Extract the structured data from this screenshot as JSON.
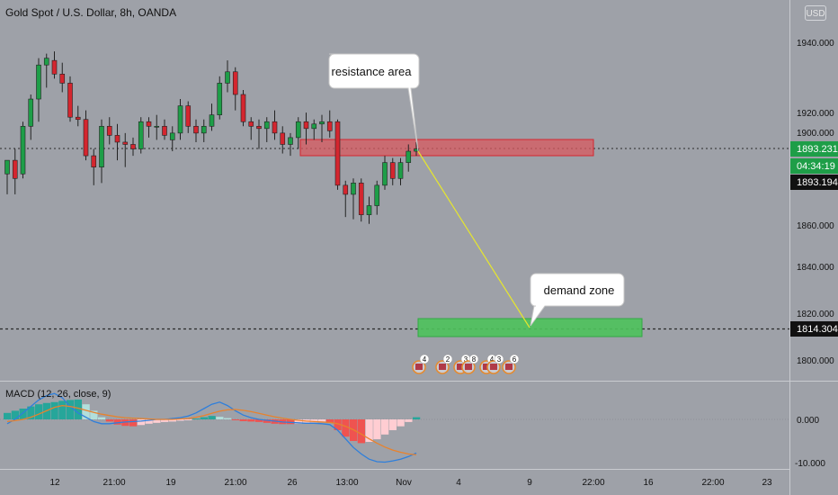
{
  "chart_title": "Gold Spot / U.S. Dollar, 8h, OANDA",
  "currency_button": "USD",
  "price_axis": {
    "ticks": [
      "1940.000",
      "1920.000",
      "1900.000",
      "1880.000",
      "1860.000",
      "1840.000",
      "1820.000",
      "1800.000"
    ]
  },
  "price_badges": {
    "last_price": "1893.231",
    "countdown": "04:34:19",
    "crosshair_price": "1893.194",
    "target_price": "1814.304"
  },
  "macd_axis": {
    "ticks": [
      "0.000",
      "-10.000"
    ]
  },
  "time_axis": {
    "ticks": [
      "12",
      "21:00",
      "19",
      "21:00",
      "26",
      "13:00",
      "Nov",
      "4",
      "9",
      "22:00",
      "16",
      "22:00",
      "23"
    ]
  },
  "annotations": {
    "resistance_label": "resistance area",
    "demand_label": "demand zone"
  },
  "event_markers": [
    "4",
    "2",
    "3",
    "8",
    "4",
    "3",
    "6"
  ],
  "macd": {
    "label": "MACD (12, 26, close, 9)"
  },
  "colors": {
    "background": "#9ea1a8",
    "up_candle": "#1e9e48",
    "down_candle": "#d4262f",
    "resistance_zone": "#d8595f",
    "demand_zone": "#4cc25b",
    "projection_line": "#e6e62e",
    "macd_line": "#2f7fdb",
    "signal_line": "#e8822c"
  },
  "chart_data": {
    "type": "candlestick",
    "title": "Gold Spot / U.S. Dollar, 8h, OANDA",
    "ylim": [
      1795,
      1950
    ],
    "candles": [
      {
        "o": 1882,
        "h": 1888,
        "l": 1873,
        "c": 1888
      },
      {
        "o": 1888,
        "h": 1893,
        "l": 1873,
        "c": 1880
      },
      {
        "o": 1882,
        "h": 1905,
        "l": 1880,
        "c": 1903
      },
      {
        "o": 1903,
        "h": 1917,
        "l": 1897,
        "c": 1915
      },
      {
        "o": 1915,
        "h": 1933,
        "l": 1905,
        "c": 1930
      },
      {
        "o": 1930,
        "h": 1935,
        "l": 1920,
        "c": 1933
      },
      {
        "o": 1932,
        "h": 1936,
        "l": 1924,
        "c": 1926
      },
      {
        "o": 1926,
        "h": 1931,
        "l": 1918,
        "c": 1922
      },
      {
        "o": 1922,
        "h": 1925,
        "l": 1905,
        "c": 1907
      },
      {
        "o": 1907,
        "h": 1912,
        "l": 1903,
        "c": 1906
      },
      {
        "o": 1906,
        "h": 1910,
        "l": 1888,
        "c": 1890
      },
      {
        "o": 1890,
        "h": 1893,
        "l": 1877,
        "c": 1885
      },
      {
        "o": 1885,
        "h": 1906,
        "l": 1878,
        "c": 1903
      },
      {
        "o": 1903,
        "h": 1907,
        "l": 1895,
        "c": 1899
      },
      {
        "o": 1899,
        "h": 1904,
        "l": 1888,
        "c": 1896
      },
      {
        "o": 1896,
        "h": 1900,
        "l": 1885,
        "c": 1895
      },
      {
        "o": 1895,
        "h": 1898,
        "l": 1890,
        "c": 1893
      },
      {
        "o": 1893,
        "h": 1907,
        "l": 1891,
        "c": 1905
      },
      {
        "o": 1905,
        "h": 1907,
        "l": 1898,
        "c": 1903
      },
      {
        "o": 1903,
        "h": 1908,
        "l": 1897,
        "c": 1903
      },
      {
        "o": 1903,
        "h": 1906,
        "l": 1897,
        "c": 1899
      },
      {
        "o": 1897,
        "h": 1903,
        "l": 1892,
        "c": 1900
      },
      {
        "o": 1900,
        "h": 1915,
        "l": 1897,
        "c": 1912
      },
      {
        "o": 1912,
        "h": 1914,
        "l": 1900,
        "c": 1903
      },
      {
        "o": 1903,
        "h": 1906,
        "l": 1896,
        "c": 1900
      },
      {
        "o": 1900,
        "h": 1906,
        "l": 1896,
        "c": 1903
      },
      {
        "o": 1903,
        "h": 1913,
        "l": 1901,
        "c": 1908
      },
      {
        "o": 1908,
        "h": 1925,
        "l": 1906,
        "c": 1922
      },
      {
        "o": 1922,
        "h": 1932,
        "l": 1918,
        "c": 1927
      },
      {
        "o": 1927,
        "h": 1929,
        "l": 1910,
        "c": 1917
      },
      {
        "o": 1917,
        "h": 1919,
        "l": 1903,
        "c": 1905
      },
      {
        "o": 1905,
        "h": 1907,
        "l": 1897,
        "c": 1903
      },
      {
        "o": 1903,
        "h": 1906,
        "l": 1893,
        "c": 1902
      },
      {
        "o": 1902,
        "h": 1907,
        "l": 1896,
        "c": 1905
      },
      {
        "o": 1905,
        "h": 1910,
        "l": 1897,
        "c": 1900
      },
      {
        "o": 1900,
        "h": 1903,
        "l": 1891,
        "c": 1895
      },
      {
        "o": 1895,
        "h": 1900,
        "l": 1890,
        "c": 1898
      },
      {
        "o": 1898,
        "h": 1907,
        "l": 1893,
        "c": 1905
      },
      {
        "o": 1905,
        "h": 1909,
        "l": 1895,
        "c": 1902
      },
      {
        "o": 1902,
        "h": 1906,
        "l": 1897,
        "c": 1904
      },
      {
        "o": 1904,
        "h": 1908,
        "l": 1896,
        "c": 1905
      },
      {
        "o": 1905,
        "h": 1910,
        "l": 1898,
        "c": 1901
      },
      {
        "o": 1905,
        "h": 1906,
        "l": 1875,
        "c": 1877
      },
      {
        "o": 1877,
        "h": 1879,
        "l": 1863,
        "c": 1873
      },
      {
        "o": 1873,
        "h": 1880,
        "l": 1862,
        "c": 1878
      },
      {
        "o": 1878,
        "h": 1880,
        "l": 1861,
        "c": 1864
      },
      {
        "o": 1864,
        "h": 1872,
        "l": 1860,
        "c": 1868
      },
      {
        "o": 1868,
        "h": 1879,
        "l": 1864,
        "c": 1877
      },
      {
        "o": 1877,
        "h": 1890,
        "l": 1875,
        "c": 1887
      },
      {
        "o": 1887,
        "h": 1889,
        "l": 1877,
        "c": 1880
      },
      {
        "o": 1880,
        "h": 1889,
        "l": 1877,
        "c": 1887
      },
      {
        "o": 1887,
        "h": 1895,
        "l": 1883,
        "c": 1892
      },
      {
        "o": 1892,
        "h": 1896,
        "l": 1890,
        "c": 1893
      }
    ],
    "resistance_zone": {
      "from": 1890,
      "to": 1898
    },
    "demand_zone": {
      "from": 1812,
      "to": 1818
    },
    "target_price": 1814.304,
    "last_price": 1893.231,
    "macd": {
      "ylim": [
        -12,
        7
      ],
      "histogram": [
        1.5,
        2,
        2.5,
        3,
        3.5,
        3.8,
        4,
        4.3,
        4.5,
        4.6,
        3.5,
        2,
        0.5,
        -0.5,
        -1.2,
        -1.5,
        -1.6,
        -1.3,
        -1,
        -0.8,
        -0.6,
        -0.5,
        -0.3,
        -0.1,
        0.2,
        0.5,
        0.8,
        0.6,
        0.3,
        -0.2,
        -0.4,
        -0.5,
        -0.6,
        -0.8,
        -1,
        -1.1,
        -1.1,
        -1,
        -0.8,
        -0.7,
        -0.5,
        -0.8,
        -2.5,
        -4,
        -5,
        -5.5,
        -5.2,
        -4.6,
        -3.5,
        -2.5,
        -1.6,
        -0.6,
        0.5
      ],
      "macd_line": [
        -1,
        0,
        1.5,
        3,
        4.5,
        5.5,
        6,
        5,
        3,
        1.5,
        0.5,
        -0.5,
        -1,
        -1,
        -0.8,
        -0.6,
        -0.5,
        -0.4,
        -0.2,
        0,
        0,
        0.2,
        0.4,
        0.8,
        1.5,
        2.5,
        3.5,
        4,
        3.2,
        2,
        1,
        0.4,
        0,
        -0.2,
        -0.4,
        -0.6,
        -0.7,
        -0.8,
        -0.9,
        -0.9,
        -1,
        -1.2,
        -2.5,
        -4.5,
        -6.5,
        -8,
        -9.2,
        -9.8,
        -9.9,
        -9.6,
        -9.2,
        -8.6,
        -7.8
      ],
      "signal_line": [
        -0.5,
        -0.3,
        0,
        0.5,
        1.2,
        2,
        2.8,
        3.2,
        3,
        2.6,
        2.1,
        1.6,
        1.2,
        0.9,
        0.6,
        0.4,
        0.3,
        0.2,
        0.1,
        0,
        0,
        0,
        0.1,
        0.2,
        0.5,
        0.9,
        1.4,
        1.9,
        2.2,
        2.3,
        2.1,
        1.8,
        1.4,
        1,
        0.6,
        0.3,
        0,
        -0.2,
        -0.4,
        -0.5,
        -0.6,
        -0.7,
        -1,
        -1.6,
        -2.4,
        -3.4,
        -4.5,
        -5.5,
        -6.4,
        -7.1,
        -7.6,
        -8,
        -8.2
      ]
    }
  }
}
